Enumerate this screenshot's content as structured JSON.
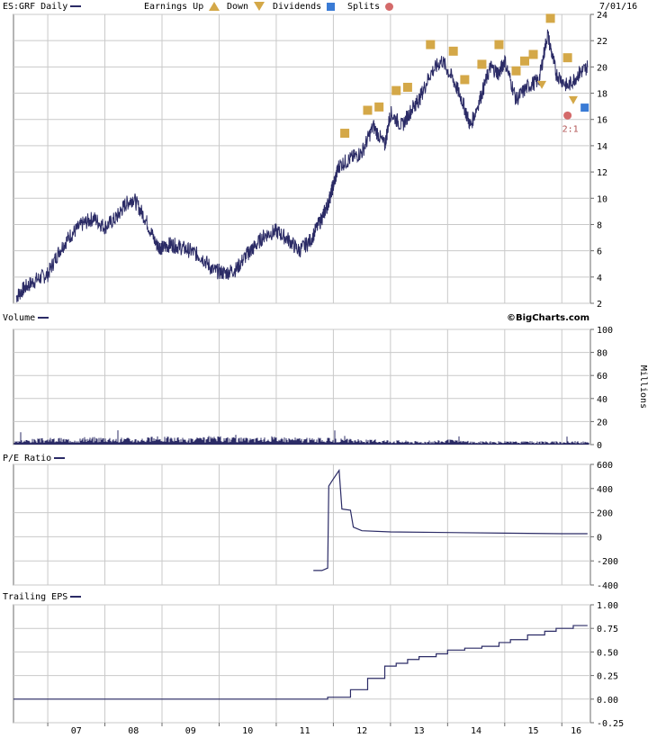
{
  "header": {
    "symbol_label": "ES:GRF Daily",
    "legend_earnings": "Earnings Up",
    "legend_down": "Down",
    "legend_dividends": "Dividends",
    "legend_splits": "Splits",
    "date": "7/01/16",
    "brand": "©BigCharts.com"
  },
  "colors": {
    "series": "#2b2b66",
    "grid": "#c9c9c9",
    "earnings_marker": "#d4a848",
    "dividend_marker": "#3a7bd5",
    "split_marker": "#d46a6a"
  },
  "chart_data": [
    {
      "type": "line",
      "name": "price",
      "label": "ES:GRF Daily",
      "x_tick_labels": [
        "07",
        "08",
        "09",
        "10",
        "11",
        "12",
        "13",
        "14",
        "15",
        "16"
      ],
      "x_range": [
        2006.4,
        2016.5
      ],
      "ylim": [
        2,
        24
      ],
      "y_ticks": [
        2,
        4,
        6,
        8,
        10,
        12,
        14,
        16,
        18,
        20,
        22,
        24
      ],
      "grid": true,
      "x": [
        2006.45,
        2006.6,
        2006.8,
        2007.0,
        2007.2,
        2007.4,
        2007.6,
        2007.8,
        2008.0,
        2008.2,
        2008.35,
        2008.5,
        2008.7,
        2008.9,
        2009.0,
        2009.15,
        2009.3,
        2009.5,
        2009.7,
        2009.9,
        2010.1,
        2010.3,
        2010.5,
        2010.6,
        2010.8,
        2011.0,
        2011.2,
        2011.4,
        2011.6,
        2011.8,
        2011.9,
        2012.0,
        2012.1,
        2012.3,
        2012.5,
        2012.7,
        2012.9,
        2013.0,
        2013.2,
        2013.4,
        2013.5,
        2013.7,
        2013.9,
        2014.1,
        2014.25,
        2014.4,
        2014.6,
        2014.75,
        2014.9,
        2015.0,
        2015.2,
        2015.4,
        2015.6,
        2015.75,
        2015.9,
        2016.1,
        2016.3,
        2016.45
      ],
      "y": [
        2.5,
        3.2,
        3.8,
        4.2,
        6.0,
        7.2,
        8.0,
        8.5,
        7.8,
        8.5,
        9.5,
        10.0,
        8.5,
        6.5,
        6.2,
        6.5,
        6.3,
        6.0,
        5.5,
        4.5,
        4.3,
        4.6,
        5.8,
        6.2,
        7.2,
        7.5,
        6.9,
        6.0,
        6.8,
        8.5,
        9.5,
        11.0,
        12.5,
        13.0,
        13.5,
        15.5,
        14.0,
        16.5,
        15.5,
        17.0,
        17.5,
        19.5,
        20.5,
        19.0,
        17.5,
        15.5,
        18.0,
        20.0,
        19.5,
        20.5,
        17.5,
        18.5,
        19.0,
        22.5,
        19.5,
        18.5,
        19.5,
        20.0
      ],
      "earnings_up_markers": [
        2012.2,
        2012.6,
        2012.8,
        2013.1,
        2013.3,
        2013.7,
        2014.1,
        2014.3,
        2014.6,
        2014.9,
        2015.2,
        2015.35,
        2015.5,
        2015.8,
        2016.1
      ],
      "earnings_down_markers": [
        2015.65,
        2016.2
      ],
      "dividend_markers": [
        2016.4
      ],
      "split_markers": [
        {
          "x": 2016.1,
          "label": "2:1"
        }
      ]
    },
    {
      "type": "bar",
      "name": "volume",
      "label": "Volume",
      "ylabel": "Millions",
      "ylim": [
        0,
        100
      ],
      "y_ticks": [
        0,
        20,
        40,
        60,
        80,
        100
      ],
      "grid": true,
      "x": [
        2006.5,
        2007.0,
        2007.5,
        2008.0,
        2008.5,
        2009.0,
        2009.5,
        2010.0,
        2010.5,
        2011.0,
        2011.5,
        2012.0,
        2012.5,
        2013.0,
        2013.5,
        2014.0,
        2014.5,
        2015.0,
        2015.5,
        2016.0,
        2016.4
      ],
      "values": [
        3,
        4,
        4,
        5,
        4,
        5,
        4,
        5,
        4,
        5,
        4,
        4,
        3,
        3,
        2,
        3,
        2,
        2,
        2,
        2,
        2
      ]
    },
    {
      "type": "line",
      "name": "pe_ratio",
      "label": "P/E Ratio",
      "ylim": [
        -400,
        600
      ],
      "y_ticks": [
        -400,
        -200,
        0,
        200,
        400,
        600
      ],
      "grid": true,
      "x": [
        2011.65,
        2011.8,
        2011.9,
        2011.92,
        2012.0,
        2012.1,
        2012.15,
        2012.3,
        2012.35,
        2012.5,
        2013.0,
        2014.0,
        2015.0,
        2016.0,
        2016.45
      ],
      "y": [
        -280,
        -280,
        -260,
        420,
        480,
        550,
        230,
        220,
        80,
        50,
        40,
        35,
        30,
        25,
        25
      ]
    },
    {
      "type": "line",
      "name": "trailing_eps",
      "label": "Trailing EPS",
      "ylim": [
        -0.25,
        1.0
      ],
      "y_ticks": [
        -0.25,
        0.0,
        0.25,
        0.5,
        0.75,
        1.0
      ],
      "y_tick_labels": [
        "-0.25",
        "0.00",
        "0.25",
        "0.50",
        "0.75",
        "1.00"
      ],
      "grid": true,
      "x": [
        2006.4,
        2011.7,
        2011.9,
        2012.3,
        2012.6,
        2012.9,
        2013.1,
        2013.3,
        2013.5,
        2013.8,
        2014.0,
        2014.3,
        2014.6,
        2014.9,
        2015.1,
        2015.4,
        2015.7,
        2015.9,
        2016.2,
        2016.45
      ],
      "y": [
        0.0,
        0.0,
        0.02,
        0.1,
        0.22,
        0.35,
        0.38,
        0.42,
        0.45,
        0.48,
        0.52,
        0.54,
        0.56,
        0.6,
        0.63,
        0.68,
        0.72,
        0.75,
        0.78,
        0.78
      ]
    }
  ]
}
